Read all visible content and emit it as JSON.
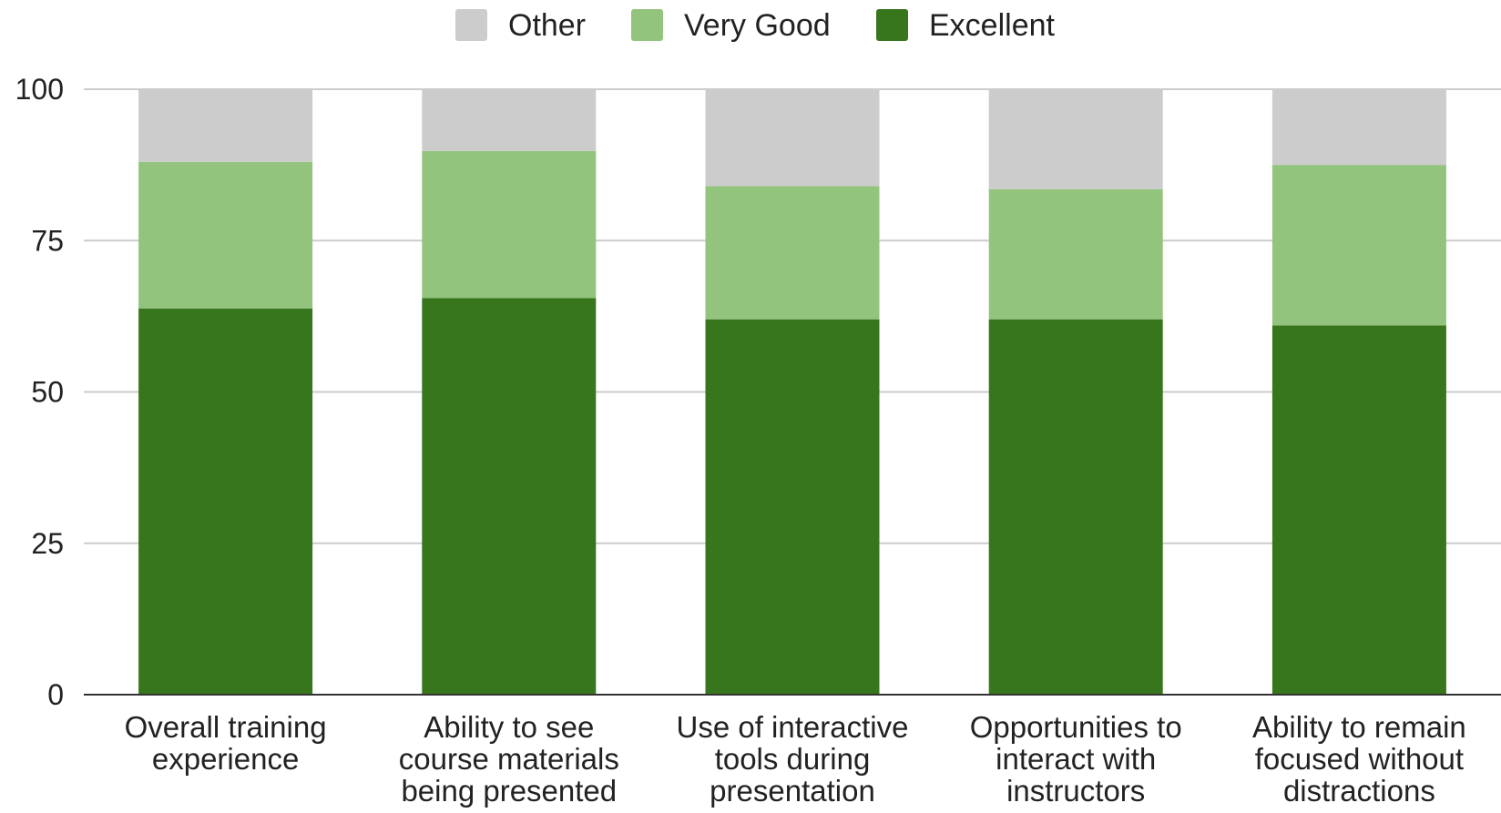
{
  "chart_data": {
    "type": "bar",
    "stacked": true,
    "title": "",
    "xlabel": "",
    "ylabel": "",
    "ylim": [
      0,
      100
    ],
    "yticks": [
      "0",
      "25",
      "50",
      "75",
      "100"
    ],
    "grid": true,
    "legend_position": "top",
    "categories": [
      [
        "Overall training",
        "experience"
      ],
      [
        "Ability to see",
        "course materials",
        "being presented"
      ],
      [
        "Use of interactive",
        "tools during",
        "presentation"
      ],
      [
        "Opportunities to",
        "interact with",
        "instructors"
      ],
      [
        "Ability to remain",
        "focused without",
        "distractions"
      ]
    ],
    "series": [
      {
        "name": "Excellent",
        "color": "#38761d",
        "values": [
          63.8,
          65.5,
          62,
          62,
          61
        ]
      },
      {
        "name": "Very Good",
        "color": "#93c47d",
        "values": [
          24.2,
          24.3,
          22,
          21.5,
          26.5
        ]
      },
      {
        "name": "Other",
        "color": "#cccccc",
        "values": [
          12,
          10.2,
          16,
          16.5,
          12.5
        ]
      }
    ],
    "legend_order": [
      "Other",
      "Very Good",
      "Excellent"
    ]
  }
}
